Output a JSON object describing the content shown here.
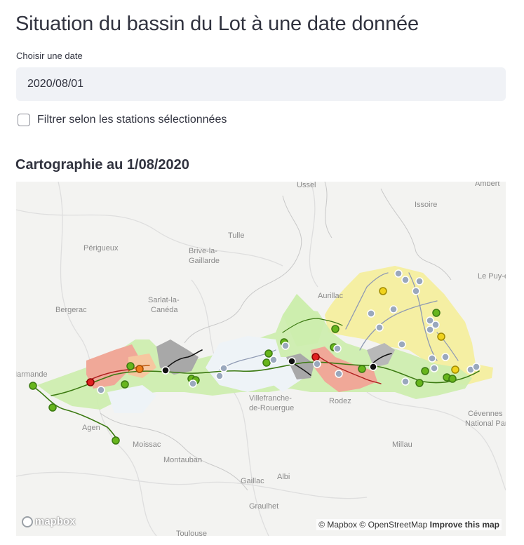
{
  "header": {
    "title": "Situation du bassin du Lot à une date donnée"
  },
  "date_picker": {
    "label": "Choisir une date",
    "value": "2020/08/01"
  },
  "filter": {
    "label": "Filtrer selon les stations sélectionnées",
    "checked": false
  },
  "map_section": {
    "title": "Cartographie au 1/08/2020"
  },
  "map": {
    "logo_text": "mapbox",
    "attribution": {
      "mapbox": "© Mapbox",
      "osm": "© OpenStreetMap",
      "improve": "Improve this map"
    },
    "towns": [
      "Ussel",
      "Issoire",
      "Ambert",
      "Périgueux",
      "Tulle",
      "Brive-la-",
      "Gaillarde",
      "Sarlat-la-",
      "Canéda",
      "Aurillac",
      "Le Puy-e",
      "Bergerac",
      "Marmande",
      "Villefranche-",
      "de-Rouergue",
      "Rodez",
      "Agen",
      "Moissac",
      "Millau",
      "Cévennes",
      "National Par",
      "Montauban",
      "Gaillac",
      "Albi",
      "Graulhet",
      "Toulouse"
    ],
    "colors": {
      "green": "#67b51c",
      "red": "#e02020",
      "orange": "#f07d1a",
      "yellow": "#f0d21c",
      "black": "#111111",
      "grey": "#9aa8bd",
      "zone_green": "#cdeeae",
      "zone_yellow": "#f5ee9a",
      "zone_red": "#f0a898",
      "zone_grey": "#a8a8a8",
      "zone_white": "#eef3f7"
    }
  }
}
